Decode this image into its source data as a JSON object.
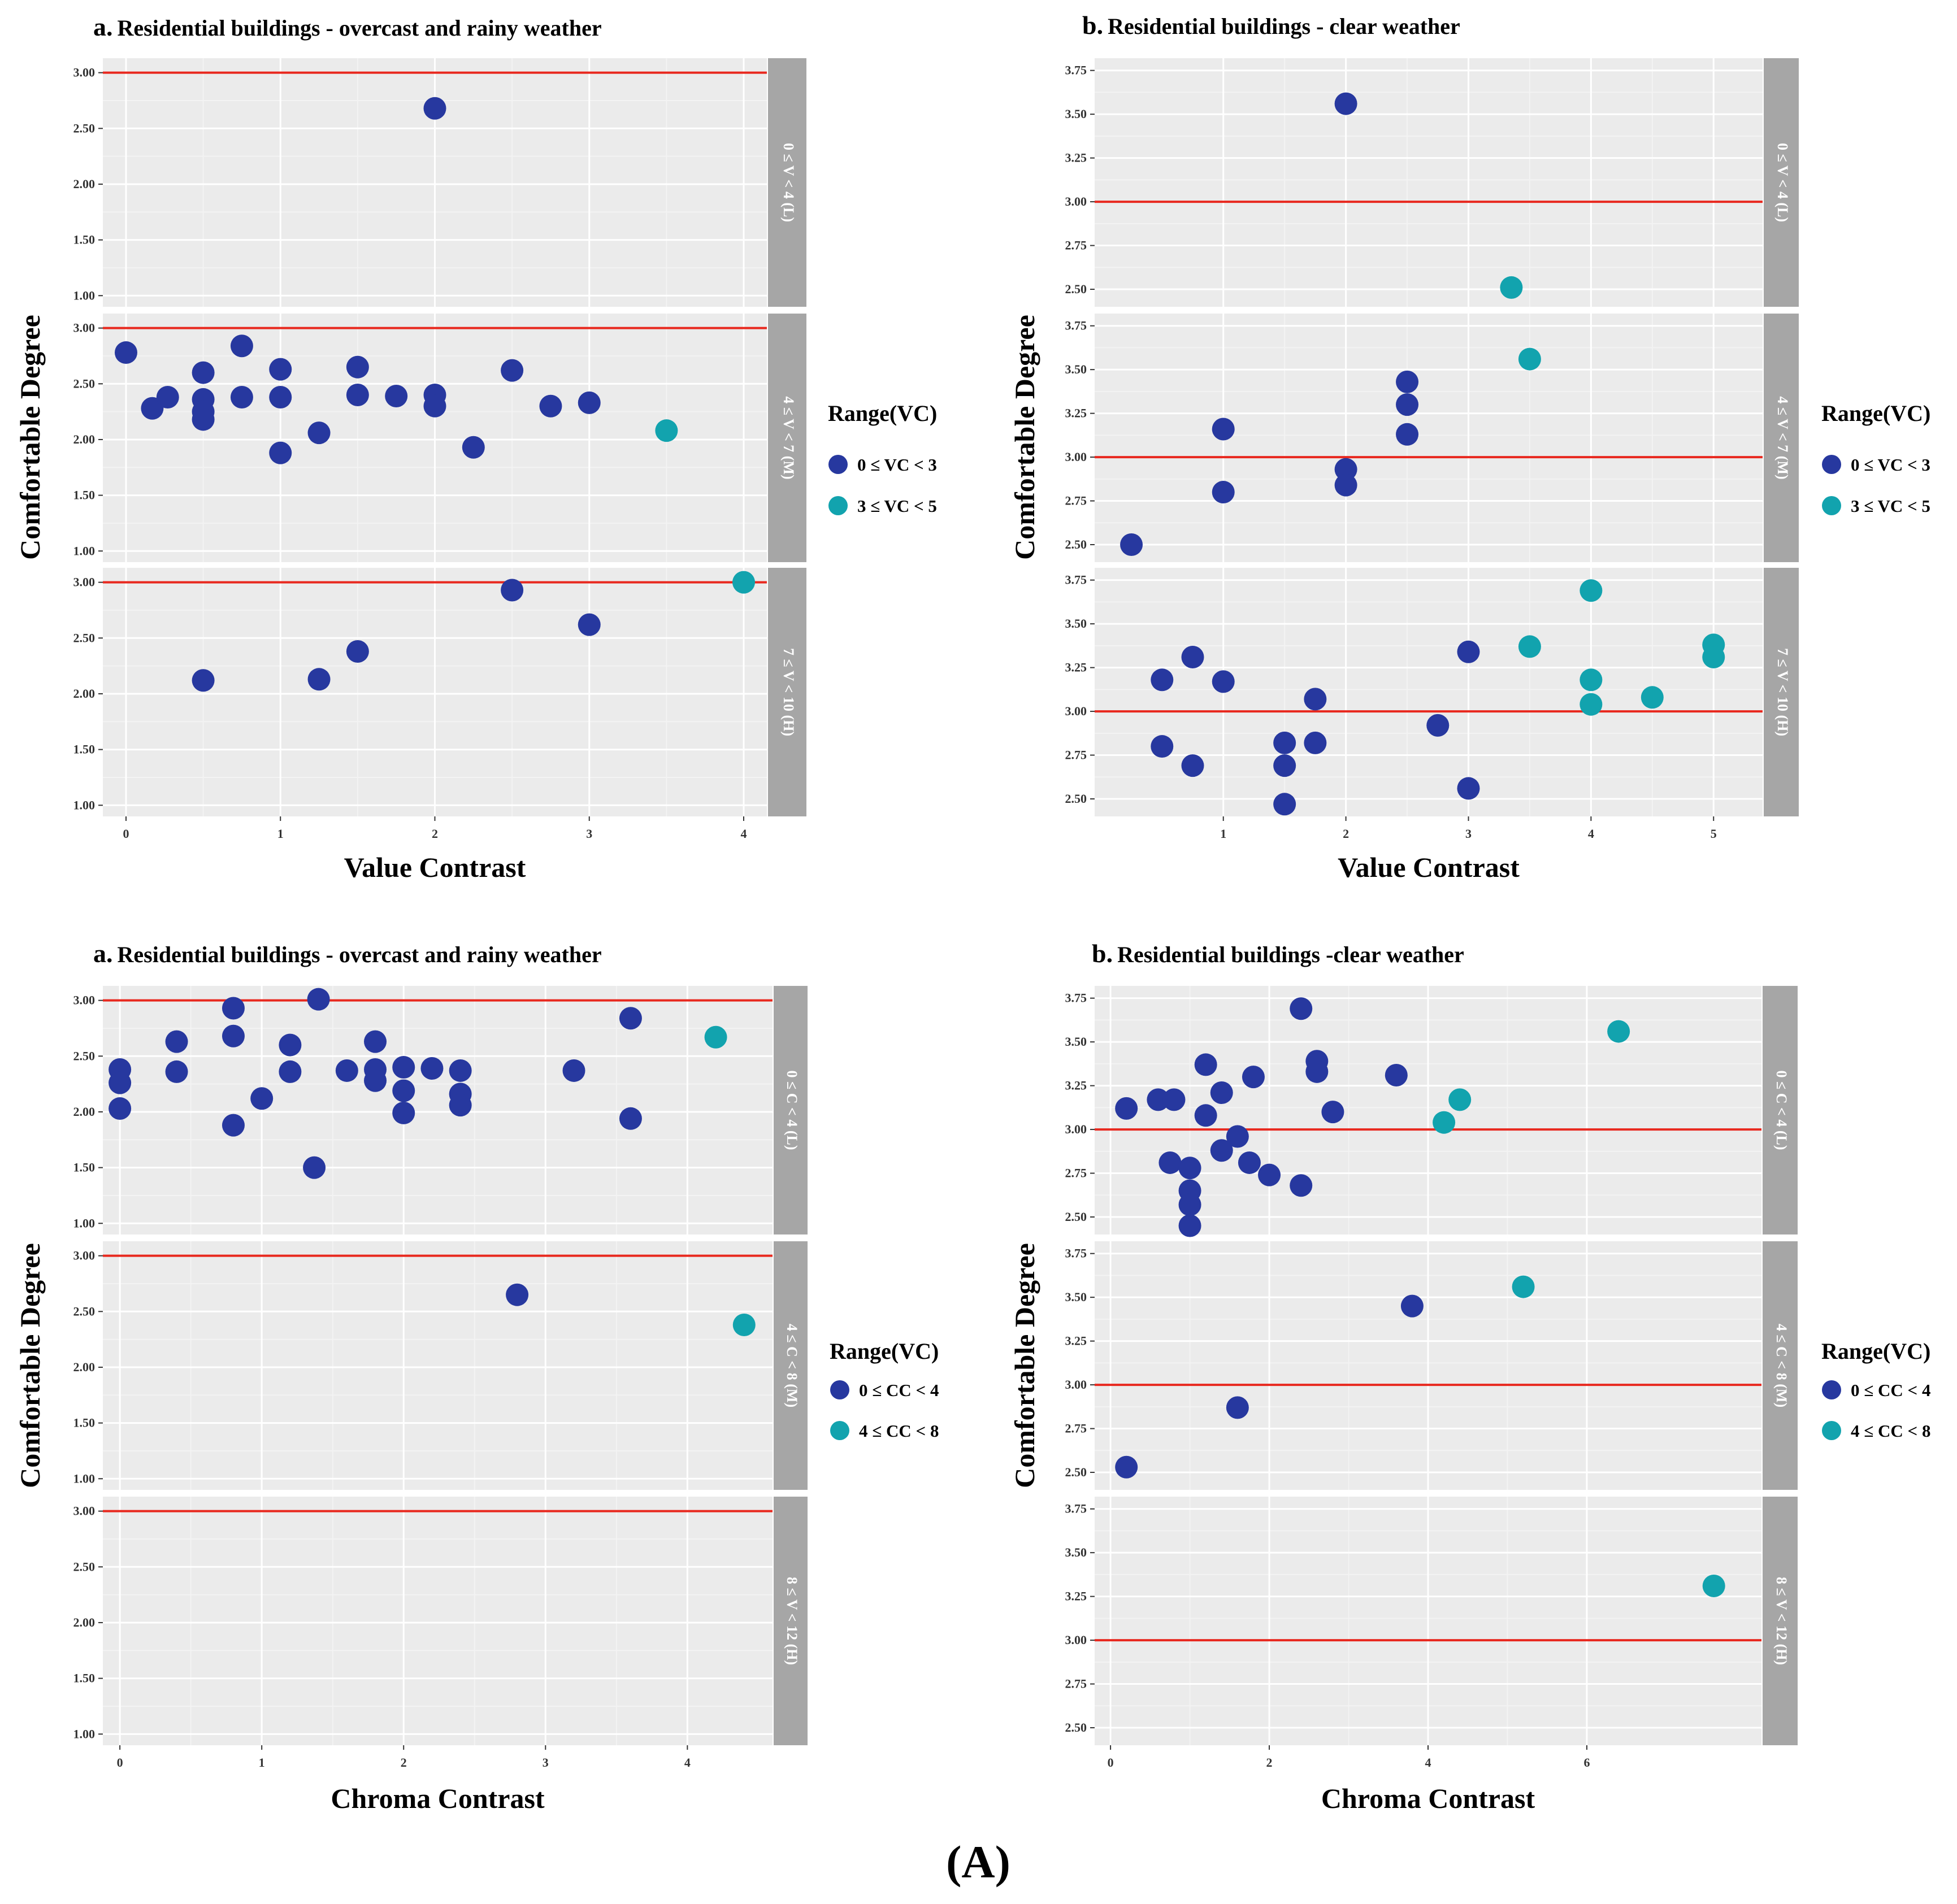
{
  "figure_label": "(A)",
  "colors": {
    "panel_bg": "#EBEBEB",
    "grid_major": "#FFFFFF",
    "grid_minor": "#F3F3F3",
    "strip_bg": "#A6A6A6",
    "strip_text": "#FFFFFF",
    "ref_line": "#E8281E",
    "series_low": "#27389F",
    "series_high": "#12A3AE",
    "text": "#000000",
    "tick_text": "#333333"
  },
  "chart_data": [
    {
      "type": "scatter",
      "letter": "a.",
      "title": "Residential buildings - overcast and rainy weather",
      "xlabel": "Value Contrast",
      "ylabel": "Comfortable Degree",
      "xlim": [
        -0.15,
        4.15
      ],
      "x_ticks": [
        0,
        1,
        2,
        3,
        4
      ],
      "x_tick_labels": [
        "0",
        "1",
        "2",
        "3",
        "4"
      ],
      "ylim": [
        0.9,
        3.13
      ],
      "y_ticks": [
        1,
        1.5,
        2,
        2.5,
        3
      ],
      "y_tick_labels": [
        "1.00",
        "1.50",
        "2.00",
        "2.50",
        "3.00"
      ],
      "reference_line": 3,
      "legend": {
        "title": "Range(VC)",
        "entries": [
          "0 ≤ VC < 3",
          "3 ≤ VC < 5"
        ]
      },
      "facets": [
        {
          "strip": "0 ≤ V < 4 (L)",
          "points": [
            [
              2,
              2.68,
              0
            ]
          ]
        },
        {
          "strip": "4 ≤ V < 7 (M)",
          "points": [
            [
              0,
              2.78,
              0
            ],
            [
              0.17,
              2.28,
              0
            ],
            [
              0.27,
              2.38,
              0
            ],
            [
              0.5,
              2.6,
              0
            ],
            [
              0.5,
              2.36,
              0
            ],
            [
              0.5,
              2.25,
              0
            ],
            [
              0.5,
              2.18,
              0
            ],
            [
              0.75,
              2.84,
              0
            ],
            [
              0.75,
              2.38,
              0
            ],
            [
              1,
              2.63,
              0
            ],
            [
              1,
              2.38,
              0
            ],
            [
              1,
              1.88,
              0
            ],
            [
              1.25,
              2.06,
              0
            ],
            [
              1.5,
              2.65,
              0
            ],
            [
              1.5,
              2.4,
              0
            ],
            [
              1.75,
              2.39,
              0
            ],
            [
              2,
              2.4,
              0
            ],
            [
              2,
              2.3,
              0
            ],
            [
              2.25,
              1.93,
              0
            ],
            [
              2.5,
              2.62,
              0
            ],
            [
              2.75,
              2.3,
              0
            ],
            [
              3,
              2.33,
              0
            ],
            [
              3.5,
              2.08,
              1
            ]
          ]
        },
        {
          "strip": "7 ≤ V < 10 (H)",
          "points": [
            [
              0.5,
              2.12,
              0
            ],
            [
              1.25,
              2.13,
              0
            ],
            [
              1.5,
              2.38,
              0
            ],
            [
              2.5,
              2.93,
              0
            ],
            [
              3,
              2.62,
              0
            ],
            [
              4,
              3,
              1
            ]
          ]
        }
      ]
    },
    {
      "type": "scatter",
      "letter": "b.",
      "title": "Residential buildings - clear weather",
      "xlabel": "Value Contrast",
      "ylabel": "Comfortable Degree",
      "xlim": [
        -0.05,
        5.4
      ],
      "x_ticks": [
        1,
        2,
        3,
        4,
        5
      ],
      "x_tick_labels": [
        "1",
        "2",
        "3",
        "4",
        "5"
      ],
      "ylim": [
        2.4,
        3.82
      ],
      "y_ticks": [
        2.5,
        2.75,
        3,
        3.25,
        3.5,
        3.75
      ],
      "y_tick_labels": [
        "2.50",
        "2.75",
        "3.00",
        "3.25",
        "3.50",
        "3.75"
      ],
      "reference_line": 3,
      "legend": {
        "title": "Range(VC)",
        "entries": [
          "0 ≤ VC < 3",
          "3 ≤ VC < 5"
        ]
      },
      "facets": [
        {
          "strip": "0 ≤ V < 4 (L)",
          "points": [
            [
              2,
              3.56,
              0
            ],
            [
              3.35,
              2.51,
              1
            ]
          ]
        },
        {
          "strip": "4 ≤ V < 7 (M)",
          "points": [
            [
              0.25,
              2.5,
              0
            ],
            [
              1,
              3.16,
              0
            ],
            [
              1,
              2.8,
              0
            ],
            [
              2,
              2.93,
              0
            ],
            [
              2,
              2.84,
              0
            ],
            [
              2.5,
              3.43,
              0
            ],
            [
              2.5,
              3.3,
              0
            ],
            [
              2.5,
              3.13,
              0
            ],
            [
              3.5,
              3.56,
              1
            ]
          ]
        },
        {
          "strip": "7 ≤ V < 10 (H)",
          "points": [
            [
              0.5,
              3.18,
              0
            ],
            [
              0.5,
              2.8,
              0
            ],
            [
              0.75,
              3.31,
              0
            ],
            [
              0.75,
              2.69,
              0
            ],
            [
              1,
              3.17,
              0
            ],
            [
              1.5,
              2.82,
              0
            ],
            [
              1.5,
              2.69,
              0
            ],
            [
              1.5,
              2.47,
              0
            ],
            [
              1.75,
              3.07,
              0
            ],
            [
              1.75,
              2.82,
              0
            ],
            [
              2.75,
              2.92,
              0
            ],
            [
              3,
              3.34,
              0
            ],
            [
              3,
              2.56,
              0
            ],
            [
              3.5,
              3.37,
              1
            ],
            [
              4,
              3.69,
              1
            ],
            [
              4,
              3.18,
              1
            ],
            [
              4,
              3.04,
              1
            ],
            [
              4.5,
              3.08,
              1
            ],
            [
              5,
              3.38,
              1
            ],
            [
              5,
              3.31,
              1
            ]
          ]
        }
      ]
    },
    {
      "type": "scatter",
      "letter": "a.",
      "title": "Residential buildings - overcast and rainy weather",
      "xlabel": "Chroma Contrast",
      "ylabel": "Comfortable Degree",
      "xlim": [
        -0.12,
        4.6
      ],
      "x_ticks": [
        0,
        1,
        2,
        3,
        4
      ],
      "x_tick_labels": [
        "0",
        "1",
        "2",
        "3",
        "4"
      ],
      "ylim": [
        0.9,
        3.13
      ],
      "y_ticks": [
        1,
        1.5,
        2,
        2.5,
        3
      ],
      "y_tick_labels": [
        "1.00",
        "1.50",
        "2.00",
        "2.50",
        "3.00"
      ],
      "reference_line": 3,
      "legend": {
        "title": "Range(VC)",
        "entries": [
          "0 ≤ CC < 4",
          "4 ≤ CC < 8"
        ]
      },
      "facets": [
        {
          "strip": "0 ≤ C < 4 (L)",
          "points": [
            [
              0,
              2.38,
              0
            ],
            [
              0,
              2.26,
              0
            ],
            [
              0,
              2.03,
              0
            ],
            [
              0.4,
              2.63,
              0
            ],
            [
              0.4,
              2.36,
              0
            ],
            [
              0.8,
              2.93,
              0
            ],
            [
              0.8,
              2.68,
              0
            ],
            [
              0.8,
              1.88,
              0
            ],
            [
              1,
              2.12,
              0
            ],
            [
              1.2,
              2.6,
              0
            ],
            [
              1.2,
              2.36,
              0
            ],
            [
              1.37,
              1.5,
              0
            ],
            [
              1.4,
              3.01,
              0
            ],
            [
              1.6,
              2.37,
              0
            ],
            [
              1.8,
              2.63,
              0
            ],
            [
              1.8,
              2.38,
              0
            ],
            [
              1.8,
              2.28,
              0
            ],
            [
              2,
              2.4,
              0
            ],
            [
              2,
              2.19,
              0
            ],
            [
              2,
              1.99,
              0
            ],
            [
              2.2,
              2.39,
              0
            ],
            [
              2.4,
              2.37,
              0
            ],
            [
              2.4,
              2.16,
              0
            ],
            [
              2.4,
              2.06,
              0
            ],
            [
              3.2,
              2.37,
              0
            ],
            [
              3.6,
              2.84,
              0
            ],
            [
              3.6,
              1.94,
              0
            ],
            [
              4.2,
              2.67,
              1
            ]
          ]
        },
        {
          "strip": "4 ≤ C < 8 (M)",
          "points": [
            [
              2.8,
              2.65,
              0
            ],
            [
              4.4,
              2.38,
              1
            ]
          ]
        },
        {
          "strip": "8 ≤ V < 12 (H)",
          "points": []
        }
      ]
    },
    {
      "type": "scatter",
      "letter": "b.",
      "title": "Residential buildings -clear weather",
      "xlabel": "Chroma Contrast",
      "ylabel": "Comfortable Degree",
      "xlim": [
        -0.2,
        8.2
      ],
      "x_ticks": [
        0,
        2,
        4,
        6
      ],
      "x_tick_labels": [
        "0",
        "2",
        "4",
        "6"
      ],
      "ylim": [
        2.4,
        3.82
      ],
      "y_ticks": [
        2.5,
        2.75,
        3,
        3.25,
        3.5,
        3.75
      ],
      "y_tick_labels": [
        "2.50",
        "2.75",
        "3.00",
        "3.25",
        "3.50",
        "3.75"
      ],
      "reference_line": 3,
      "legend": {
        "title": "Range(VC)",
        "entries": [
          "0 ≤ CC < 4",
          "4 ≤ CC < 8"
        ]
      },
      "facets": [
        {
          "strip": "0 ≤ C < 4 (L)",
          "points": [
            [
              0.2,
              3.12,
              0
            ],
            [
              0.6,
              3.17,
              0
            ],
            [
              0.8,
              3.17,
              0
            ],
            [
              0.75,
              2.81,
              0
            ],
            [
              1,
              2.78,
              0
            ],
            [
              1,
              2.65,
              0
            ],
            [
              1,
              2.57,
              0
            ],
            [
              1,
              2.45,
              0
            ],
            [
              1.2,
              3.37,
              0
            ],
            [
              1.2,
              3.08,
              0
            ],
            [
              1.4,
              3.21,
              0
            ],
            [
              1.4,
              2.88,
              0
            ],
            [
              1.6,
              2.96,
              0
            ],
            [
              1.75,
              2.81,
              0
            ],
            [
              1.8,
              3.3,
              0
            ],
            [
              2,
              2.74,
              0
            ],
            [
              2.4,
              3.69,
              0
            ],
            [
              2.4,
              2.68,
              0
            ],
            [
              2.6,
              3.39,
              0
            ],
            [
              2.6,
              3.33,
              0
            ],
            [
              2.8,
              3.1,
              0
            ],
            [
              3.6,
              3.31,
              0
            ],
            [
              4.2,
              3.04,
              1
            ],
            [
              4.4,
              3.17,
              1
            ],
            [
              6.4,
              3.56,
              1
            ]
          ]
        },
        {
          "strip": "4 ≤ C < 8 (M)",
          "points": [
            [
              0.2,
              2.53,
              0
            ],
            [
              1.6,
              2.87,
              0
            ],
            [
              3.8,
              3.45,
              0
            ],
            [
              5.2,
              3.56,
              1
            ]
          ]
        },
        {
          "strip": "8 ≤ V < 12 (H)",
          "points": [
            [
              7.6,
              3.31,
              1
            ]
          ]
        }
      ]
    }
  ]
}
